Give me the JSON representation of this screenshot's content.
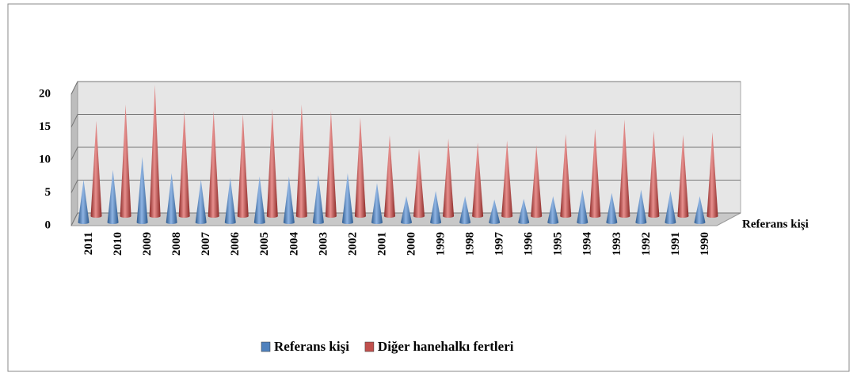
{
  "chart_data": {
    "type": "cone3d",
    "categories": [
      "2011",
      "2010",
      "2009",
      "2008",
      "2007",
      "2006",
      "2005",
      "2004",
      "2003",
      "2002",
      "2001",
      "2000",
      "1999",
      "1998",
      "1997",
      "1996",
      "1995",
      "1994",
      "1993",
      "1992",
      "1991",
      "1990"
    ],
    "series": [
      {
        "name": "Referans kişi",
        "color": "#4f81bd",
        "values": [
          6.5,
          8,
          10,
          7.5,
          6.5,
          6.8,
          7,
          7,
          7.2,
          7.5,
          6,
          4,
          4.8,
          4,
          3.5,
          3.6,
          4,
          5,
          4.5,
          5,
          4.8,
          4
        ]
      },
      {
        "name": "Diğer hanehalkı fertleri",
        "color": "#c0504d",
        "values": [
          14.5,
          17,
          20,
          16,
          16,
          15.5,
          16.3,
          17,
          16,
          15,
          12.3,
          10.3,
          11.8,
          11.2,
          11.5,
          10.8,
          12.5,
          13.3,
          14.7,
          13,
          12.4,
          12.8
        ]
      }
    ],
    "depth_label": "Referans kişi",
    "ylim": [
      0,
      20
    ],
    "yticks": [
      0,
      5,
      10,
      15,
      20
    ],
    "grid": true,
    "legend": "bottom"
  }
}
